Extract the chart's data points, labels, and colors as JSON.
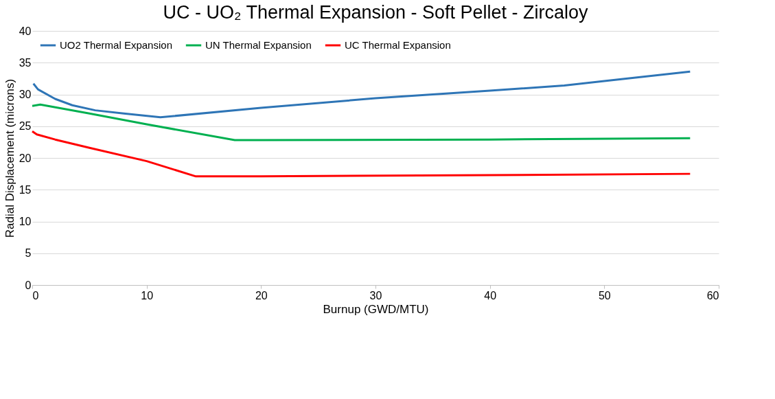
{
  "chart_data": {
    "type": "line",
    "title": "UC - UO₂ Thermal Expansion - Soft Pellet - Zircaloy",
    "xlabel": "Burnup (GWD/MTU)",
    "ylabel": "Radial Displacement (microns)",
    "xlim": [
      0,
      60
    ],
    "xticks": [
      0,
      10,
      20,
      30,
      40,
      50,
      60
    ],
    "ylim": [
      0,
      40
    ],
    "yticks": [
      0,
      5,
      10,
      15,
      20,
      25,
      30,
      35,
      40
    ],
    "grid": "y",
    "legend": "top",
    "marker": "none",
    "line_style": "solid",
    "series": [
      {
        "name": "UO2 Thermal Expansion",
        "color": "#2e75b6",
        "x": [
          0.1,
          0.5,
          2,
          3.5,
          5.5,
          8,
          11.2,
          20,
          30,
          40,
          46.5,
          50,
          57.5
        ],
        "values": [
          31.7,
          30.8,
          29.3,
          28.3,
          27.5,
          27.0,
          26.4,
          27.9,
          29.4,
          30.6,
          31.4,
          32.1,
          33.6
        ]
      },
      {
        "name": "UN Thermal Expansion",
        "color": "#00b050",
        "x": [
          0,
          0.7,
          5,
          10,
          17.7,
          20,
          40,
          57.5
        ],
        "values": [
          28.2,
          28.4,
          27.0,
          25.3,
          22.8,
          22.8,
          22.9,
          23.1
        ]
      },
      {
        "name": "UC Thermal Expansion",
        "color": "#ff0000",
        "x": [
          0,
          0.4,
          2,
          5,
          10,
          14.3,
          20,
          40,
          57.5
        ],
        "values": [
          24.2,
          23.7,
          22.9,
          21.6,
          19.5,
          17.1,
          17.1,
          17.3,
          17.5
        ]
      }
    ]
  }
}
